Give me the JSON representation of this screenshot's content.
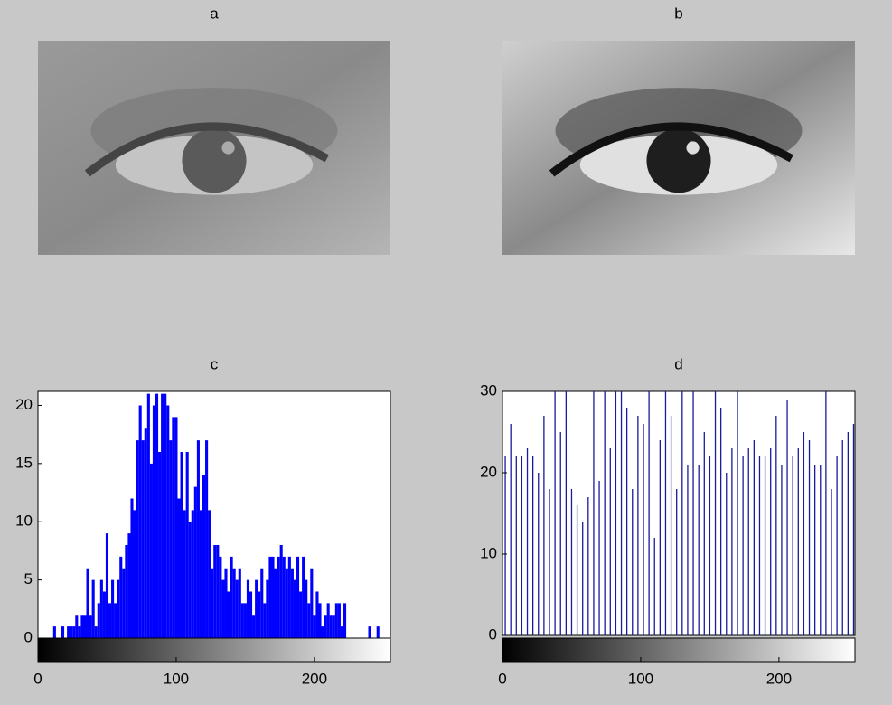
{
  "chart_data": [
    {
      "type": "image",
      "title": "a"
    },
    {
      "type": "image",
      "title": "b"
    },
    {
      "type": "stem",
      "title": "c",
      "color": "#0000ff",
      "x": [
        0,
        2,
        4,
        6,
        8,
        10,
        12,
        14,
        16,
        18,
        20,
        22,
        24,
        26,
        28,
        30,
        32,
        34,
        36,
        38,
        40,
        42,
        44,
        46,
        48,
        50,
        52,
        54,
        56,
        58,
        60,
        62,
        64,
        66,
        68,
        70,
        72,
        74,
        76,
        78,
        80,
        82,
        84,
        86,
        88,
        90,
        92,
        94,
        96,
        98,
        100,
        102,
        104,
        106,
        108,
        110,
        112,
        114,
        116,
        118,
        120,
        122,
        124,
        126,
        128,
        130,
        132,
        134,
        136,
        138,
        140,
        142,
        144,
        146,
        148,
        150,
        152,
        154,
        156,
        158,
        160,
        162,
        164,
        166,
        168,
        170,
        172,
        174,
        176,
        178,
        180,
        182,
        184,
        186,
        188,
        190,
        192,
        194,
        196,
        198,
        200,
        202,
        204,
        206,
        208,
        210,
        212,
        214,
        216,
        218,
        220,
        222,
        224,
        226,
        228,
        230,
        232,
        234,
        236,
        238,
        240,
        242,
        244,
        246,
        248,
        250,
        252,
        254
      ],
      "values": [
        0,
        0,
        0,
        0,
        0,
        0,
        1,
        0,
        0,
        1,
        0,
        1,
        1,
        1,
        2,
        1,
        2,
        2,
        6,
        2,
        5,
        1,
        3,
        5,
        4,
        9,
        3,
        5,
        3,
        5,
        7,
        6,
        8,
        9,
        12,
        11,
        17,
        20,
        17,
        18,
        21,
        15,
        20,
        21,
        16,
        21,
        21,
        20,
        17,
        19,
        19,
        12,
        16,
        11,
        16,
        10,
        11,
        13,
        17,
        11,
        14,
        17,
        11,
        6,
        8,
        8,
        7,
        5,
        6,
        4,
        7,
        6,
        5,
        6,
        3,
        3,
        5,
        4,
        2,
        5,
        4,
        6,
        3,
        5,
        7,
        7,
        6,
        7,
        8,
        7,
        6,
        7,
        6,
        5,
        7,
        4,
        7,
        5,
        3,
        6,
        2,
        4,
        3,
        1,
        2,
        3,
        2,
        2,
        3,
        3,
        1,
        3,
        0,
        0,
        0,
        0,
        0,
        0,
        0,
        0,
        1,
        0,
        0,
        1,
        0,
        0,
        0,
        0
      ],
      "xlim": [
        0,
        255
      ],
      "xticks": [
        0,
        100,
        200
      ],
      "ylim": [
        0,
        21.2
      ],
      "yticks": [
        0,
        5,
        10,
        15,
        20
      ]
    },
    {
      "type": "stem",
      "title": "d",
      "color": "#1a1a9c",
      "x": [
        2,
        6,
        10,
        14,
        18,
        22,
        26,
        30,
        34,
        38,
        42,
        46,
        50,
        54,
        58,
        62,
        66,
        70,
        74,
        78,
        82,
        86,
        90,
        94,
        98,
        102,
        106,
        110,
        114,
        118,
        122,
        126,
        130,
        134,
        138,
        142,
        146,
        150,
        154,
        158,
        162,
        166,
        170,
        174,
        178,
        182,
        186,
        190,
        194,
        198,
        202,
        206,
        210,
        214,
        218,
        222,
        226,
        230,
        234,
        238,
        242,
        246,
        250,
        254
      ],
      "values": [
        22,
        26,
        22,
        22,
        23,
        22,
        20,
        27,
        18,
        30,
        25,
        30,
        18,
        16,
        14,
        17,
        30,
        19,
        30,
        23,
        30,
        30,
        28,
        18,
        27,
        26,
        30,
        12,
        24,
        30,
        27,
        18,
        30,
        21,
        30,
        21,
        25,
        22,
        30,
        28,
        20,
        23,
        30,
        22,
        23,
        24,
        22,
        22,
        23,
        27,
        21,
        29,
        22,
        23,
        25,
        24,
        21,
        21,
        30,
        18,
        22,
        24,
        25,
        26
      ],
      "xlim": [
        0,
        255
      ],
      "xticks": [
        0,
        100,
        200
      ],
      "ylim": [
        0,
        30
      ],
      "yticks": [
        0,
        10,
        20,
        30
      ]
    }
  ]
}
